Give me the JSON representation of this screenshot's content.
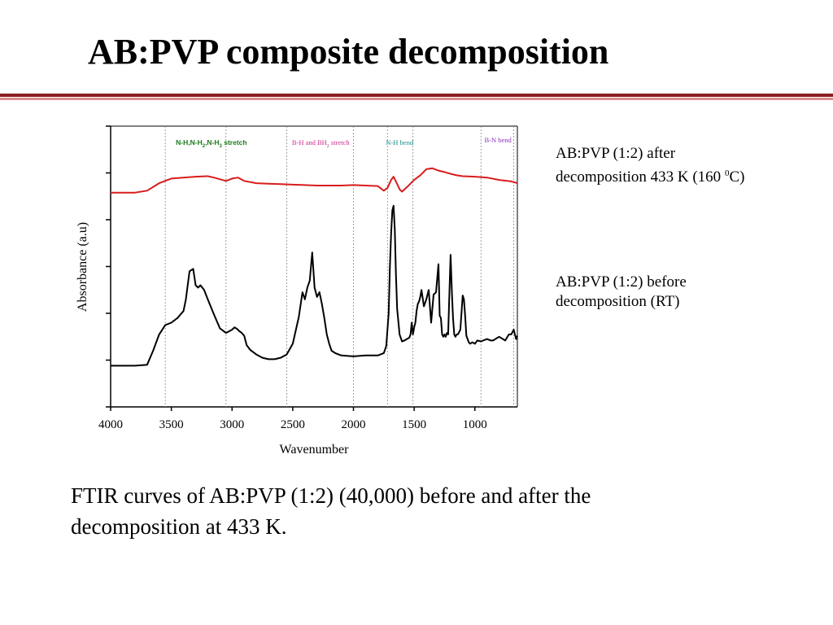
{
  "slide": {
    "title": "AB:PVP composite decomposition",
    "rule_colors": {
      "dark": "#8c1d20",
      "light": "#d98c8c"
    }
  },
  "labels": {
    "after": {
      "line1": "AB:PVP (1:2) after",
      "line2_prefix": "decomposition 433 K (160 ",
      "line2_sup": "0",
      "line2_suffix": "C)"
    },
    "before": {
      "line1": "AB:PVP (1:2) before",
      "line2": "decomposition (RT)"
    }
  },
  "caption": {
    "line1": "FTIR curves of AB:PVP (1:2) (40,000) before and after the",
    "line2": "decomposition at 433 K."
  },
  "chart_data": {
    "type": "line",
    "title": "",
    "xlabel": "Wavenumber",
    "ylabel": "Absorbance (a.u)",
    "xlim": [
      4000,
      650
    ],
    "x_reversed": true,
    "ylim": [
      0,
      6
    ],
    "xticks": [
      4000,
      3500,
      3000,
      2500,
      2000,
      1500,
      1000
    ],
    "yticks": [
      0,
      1,
      2,
      3,
      4,
      5,
      6
    ],
    "ytick_labels_shown": false,
    "grid": false,
    "region_lines": [
      3550,
      3050,
      2550,
      2000,
      1720,
      1510,
      950,
      680
    ],
    "annotations": [
      {
        "id": "nh",
        "main": "N-H,N-H",
        "sub1": "2",
        "mid": ",N-H",
        "sub2": "3",
        "tail": " stretch",
        "x": 3170,
        "y": 5.6,
        "color": "#1a7a1a"
      },
      {
        "id": "bh",
        "main": "B-H and BH",
        "sub1": "2",
        "tail": " stretch",
        "x": 2270,
        "y": 5.6,
        "color": "#cc2b8f"
      },
      {
        "id": "nhb",
        "main": "N-H bend",
        "x": 1620,
        "y": 5.6,
        "color": "#1a8a8a"
      },
      {
        "id": "bn",
        "main": "B-N bend",
        "x": 810,
        "y": 5.65,
        "color": "#8833bb"
      }
    ],
    "series": [
      {
        "name": "AB:PVP (1:2) after decomposition 433 K (160 0C)",
        "color": "#d91c1c",
        "x": [
          4000,
          3800,
          3700,
          3600,
          3500,
          3400,
          3300,
          3200,
          3150,
          3050,
          3000,
          2950,
          2900,
          2800,
          2700,
          2600,
          2500,
          2400,
          2300,
          2200,
          2100,
          2000,
          1900,
          1800,
          1750,
          1720,
          1690,
          1670,
          1650,
          1620,
          1600,
          1550,
          1500,
          1450,
          1400,
          1350,
          1300,
          1250,
          1200,
          1150,
          1100,
          1000,
          900,
          800,
          700,
          650
        ],
        "y": [
          4.58,
          4.58,
          4.62,
          4.78,
          4.88,
          4.9,
          4.92,
          4.93,
          4.9,
          4.83,
          4.88,
          4.9,
          4.83,
          4.78,
          4.77,
          4.76,
          4.75,
          4.74,
          4.73,
          4.73,
          4.73,
          4.74,
          4.73,
          4.72,
          4.62,
          4.68,
          4.85,
          4.92,
          4.82,
          4.65,
          4.6,
          4.72,
          4.85,
          4.95,
          5.08,
          5.1,
          5.05,
          5.02,
          4.98,
          4.95,
          4.93,
          4.92,
          4.9,
          4.85,
          4.82,
          4.78
        ]
      },
      {
        "name": "AB:PVP (1:2) before decomposition (RT)",
        "color": "#000000",
        "x": [
          4000,
          3800,
          3700,
          3650,
          3600,
          3550,
          3500,
          3450,
          3400,
          3380,
          3350,
          3320,
          3300,
          3280,
          3260,
          3230,
          3200,
          3150,
          3100,
          3050,
          3000,
          2980,
          2960,
          2940,
          2920,
          2900,
          2880,
          2850,
          2800,
          2750,
          2700,
          2650,
          2600,
          2550,
          2500,
          2450,
          2420,
          2400,
          2380,
          2360,
          2340,
          2320,
          2300,
          2280,
          2260,
          2240,
          2220,
          2200,
          2180,
          2150,
          2100,
          2000,
          1900,
          1800,
          1750,
          1730,
          1710,
          1700,
          1690,
          1680,
          1670,
          1660,
          1650,
          1640,
          1620,
          1600,
          1580,
          1560,
          1540,
          1530,
          1520,
          1510,
          1500,
          1490,
          1480,
          1470,
          1460,
          1450,
          1440,
          1420,
          1400,
          1380,
          1360,
          1340,
          1320,
          1300,
          1290,
          1280,
          1270,
          1260,
          1250,
          1240,
          1230,
          1220,
          1200,
          1190,
          1180,
          1170,
          1160,
          1150,
          1140,
          1120,
          1100,
          1090,
          1080,
          1070,
          1060,
          1050,
          1040,
          1020,
          1000,
          980,
          950,
          900,
          870,
          850,
          800,
          750,
          720,
          700,
          680,
          660,
          650
        ],
        "y": [
          0.88,
          0.88,
          0.9,
          1.2,
          1.55,
          1.75,
          1.8,
          1.9,
          2.05,
          2.3,
          2.9,
          2.95,
          2.6,
          2.55,
          2.6,
          2.5,
          2.3,
          1.98,
          1.68,
          1.58,
          1.65,
          1.7,
          1.67,
          1.62,
          1.58,
          1.52,
          1.32,
          1.22,
          1.12,
          1.05,
          1.02,
          1.02,
          1.05,
          1.12,
          1.35,
          1.92,
          2.45,
          2.3,
          2.55,
          2.7,
          3.3,
          2.55,
          2.35,
          2.45,
          2.2,
          1.9,
          1.55,
          1.35,
          1.2,
          1.15,
          1.1,
          1.08,
          1.1,
          1.1,
          1.15,
          1.3,
          2.0,
          3.0,
          3.7,
          4.2,
          4.3,
          3.8,
          2.85,
          2.1,
          1.55,
          1.4,
          1.42,
          1.45,
          1.48,
          1.55,
          1.8,
          1.55,
          1.7,
          1.8,
          2.05,
          2.2,
          2.25,
          2.35,
          2.5,
          2.15,
          2.3,
          2.5,
          1.8,
          2.4,
          2.45,
          3.05,
          1.95,
          1.9,
          1.55,
          1.5,
          1.55,
          1.5,
          1.58,
          1.55,
          3.25,
          2.5,
          1.9,
          1.55,
          1.5,
          1.55,
          1.55,
          1.65,
          2.38,
          2.3,
          1.95,
          1.52,
          1.45,
          1.38,
          1.35,
          1.38,
          1.35,
          1.42,
          1.4,
          1.45,
          1.42,
          1.42,
          1.5,
          1.42,
          1.55,
          1.55,
          1.65,
          1.45,
          1.52
        ]
      }
    ]
  }
}
